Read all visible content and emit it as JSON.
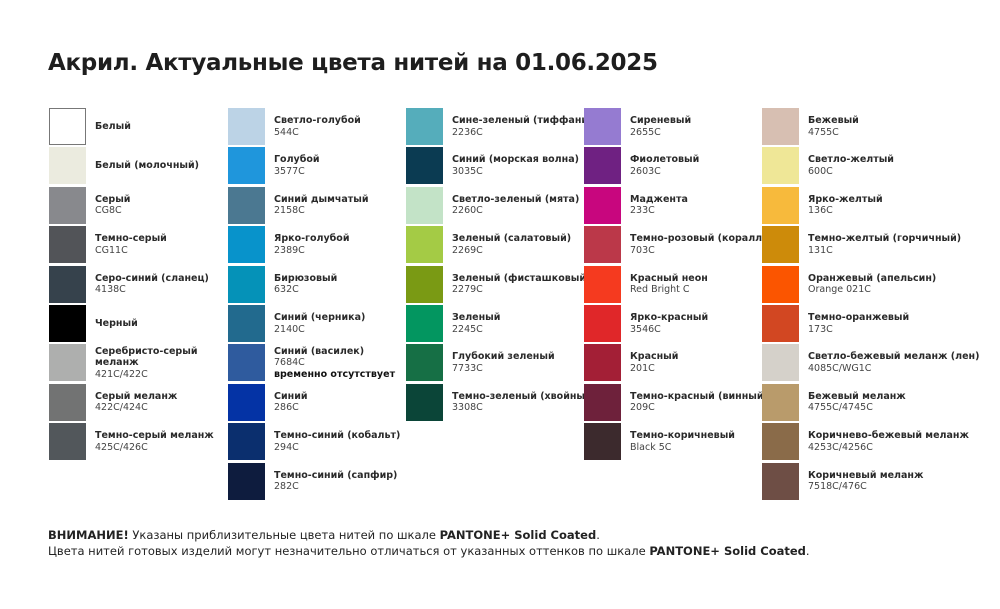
{
  "title": "Акрил. Актуальные цвета нитей на 01.06.2025",
  "columns": [
    [
      {
        "name": "Белый",
        "code": "",
        "color": "#ffffff",
        "outlined": true
      },
      {
        "name": "Белый (молочный)",
        "code": "",
        "color": "#ebebdf"
      },
      {
        "name": "Серый",
        "code": "CG8C",
        "color": "#88898d"
      },
      {
        "name": "Темно-серый",
        "code": "CG11C",
        "color": "#525458"
      },
      {
        "name": "Серо-синий (сланец)",
        "code": "4138C",
        "color": "#36424c"
      },
      {
        "name": "Черный",
        "code": "",
        "color": "#000000"
      },
      {
        "name": "Серебристо-серый меланж",
        "code": "421C/422C",
        "color": "#aeafae",
        "wrap": true
      },
      {
        "name": "Серый меланж",
        "code": "422C/424C",
        "color": "#727373"
      },
      {
        "name": "Темно-серый меланж",
        "code": "425C/426C",
        "color": "#52575b"
      }
    ],
    [
      {
        "name": "Светло-голубой",
        "code": "544C",
        "color": "#bcd3e6"
      },
      {
        "name": "Голубой",
        "code": "3577C",
        "color": "#1f96dc"
      },
      {
        "name": "Синий дымчатый",
        "code": "2158C",
        "color": "#4b7891"
      },
      {
        "name": "Ярко-голубой",
        "code": "2389C",
        "color": "#0893cb"
      },
      {
        "name": "Бирюзовый",
        "code": "632C",
        "color": "#0592b8"
      },
      {
        "name": "Синий (черника)",
        "code": "2140C",
        "color": "#226a8e"
      },
      {
        "name": "Синий (василек)",
        "code": "7684C",
        "note": "временно отсутствует",
        "color": "#2f5b9e"
      },
      {
        "name": "Синий",
        "code": "286C",
        "color": "#0433a5"
      },
      {
        "name": "Темно-синий (кобальт)",
        "code": "294C",
        "color": "#0b2f6e"
      },
      {
        "name": "Темно-синий (сапфир)",
        "code": "282C",
        "color": "#0e1c3e"
      }
    ],
    [
      {
        "name": "Сине-зеленый (тиффани)",
        "code": "2236C",
        "color": "#55adbb"
      },
      {
        "name": "Синий (морская волна)",
        "code": "3035C",
        "color": "#0b3b52"
      },
      {
        "name": "Светло-зеленый (мята)",
        "code": "2260C",
        "color": "#c3e3c7"
      },
      {
        "name": "Зеленый (салатовый)",
        "code": "2269C",
        "color": "#a4cb45"
      },
      {
        "name": "Зеленый (фисташковый)",
        "code": "2279C",
        "color": "#7a9a14"
      },
      {
        "name": "Зеленый",
        "code": "2245C",
        "color": "#039660"
      },
      {
        "name": "Глубокий зеленый",
        "code": "7733C",
        "color": "#166f45"
      },
      {
        "name": "Темно-зеленый (хвойный)",
        "code": "3308C",
        "color": "#0b4538"
      }
    ],
    [
      {
        "name": "Сиреневый",
        "code": "2655C",
        "color": "#957bd1"
      },
      {
        "name": "Фиолетовый",
        "code": "2603C",
        "color": "#6f2182"
      },
      {
        "name": "Маджента",
        "code": "233C",
        "color": "#c8067e"
      },
      {
        "name": "Темно-розовый (коралл)",
        "code": "703C",
        "color": "#bb3849"
      },
      {
        "name": "Красный неон",
        "code": "Red Bright C",
        "color": "#f53a1f"
      },
      {
        "name": "Ярко-красный",
        "code": "3546C",
        "color": "#e02729"
      },
      {
        "name": "Красный",
        "code": "201C",
        "color": "#a31f36"
      },
      {
        "name": "Темно-красный (винный)",
        "code": "209C",
        "color": "#6e213b"
      },
      {
        "name": "Темно-коричневый",
        "code": "Black 5C",
        "color": "#3c2a2d"
      }
    ],
    [
      {
        "name": "Бежевый",
        "code": "4755C",
        "color": "#d7bfb2"
      },
      {
        "name": "Светло-желтый",
        "code": "600C",
        "color": "#efe797"
      },
      {
        "name": "Ярко-желтый",
        "code": "136C",
        "color": "#f7ba3c"
      },
      {
        "name": "Темно-желтый (горчичный)",
        "code": "131C",
        "color": "#cd8b0a"
      },
      {
        "name": "Оранжевый (апельсин)",
        "code": "Orange 021C",
        "color": "#fb5500"
      },
      {
        "name": "Темно-оранжевый",
        "code": "173C",
        "color": "#d24722"
      },
      {
        "name": "Светло-бежевый меланж (лен)",
        "code": "4085C/WG1C",
        "color": "#d5d1ca"
      },
      {
        "name": "Бежевый меланж",
        "code": "4755C/4745C",
        "color": "#b99b6b"
      },
      {
        "name": "Коричнево-бежевый меланж",
        "code": "4253C/4256C",
        "color": "#8a6b49"
      },
      {
        "name": "Коричневый меланж",
        "code": "7518C/476C",
        "color": "#6e4e45"
      }
    ]
  ],
  "footer": {
    "line1_bold": "ВНИМАНИЕ!",
    "line1_text": " Указаны приблизительные цвета нитей по шкале ",
    "line1_brand": "PANTONE+ Solid Coated",
    "line1_end": ".",
    "line2_text": "Цвета нитей готовых изделий могут незначительно отличаться от указанных оттенков по шкале ",
    "line2_brand": "PANTONE+ Solid Coated",
    "line2_end": "."
  }
}
